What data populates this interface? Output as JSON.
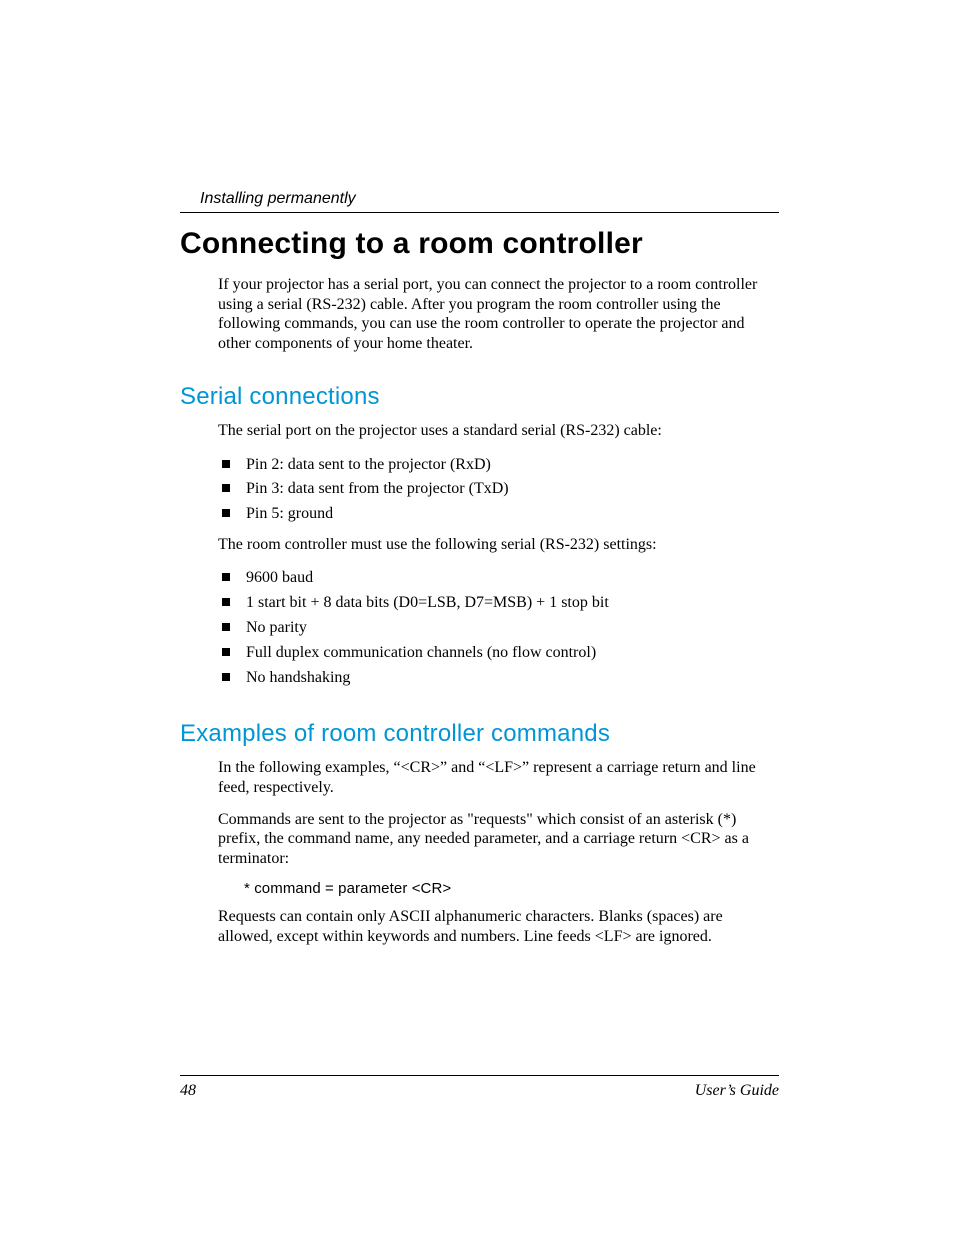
{
  "header": {
    "running": "Installing permanently"
  },
  "title": "Connecting to a room controller",
  "intro": "If your projector has a serial port, you can connect the projector to a room controller using a serial (RS-232) cable. After you program the room controller using the following commands, you can use the room controller to operate the projector and other components of your home theater.",
  "serial": {
    "heading": "Serial connections",
    "lead": "The serial port on the projector uses a standard serial (RS-232) cable:",
    "pins": [
      "Pin 2: data sent to the projector (RxD)",
      "Pin 3: data sent from the projector (TxD)",
      "Pin 5: ground"
    ],
    "settings_lead": "The room controller must use the following serial (RS-232) settings:",
    "settings": [
      "9600 baud",
      "1 start bit + 8 data bits (D0=LSB, D7=MSB) + 1 stop bit",
      "No parity",
      "Full duplex communication channels (no flow control)",
      "No handshaking"
    ]
  },
  "examples": {
    "heading": "Examples of room controller commands",
    "p1": "In the following examples, “<CR>” and “<LF>” represent a carriage return and line feed, respectively.",
    "p2": "Commands are sent to the projector as \"requests\" which consist of an asterisk (*) prefix, the command name, any needed parameter, and a carriage return <CR> as a terminator:",
    "code": "* command = parameter <CR>",
    "p3": "Requests can contain only ASCII alphanumeric characters. Blanks (spaces) are allowed, except within keywords and numbers. Line feeds <LF> are ignored."
  },
  "footer": {
    "page": "48",
    "booktitle": "User’s Guide"
  },
  "colors": {
    "accent": "#0096d6",
    "text": "#000000",
    "background": "#ffffff"
  }
}
